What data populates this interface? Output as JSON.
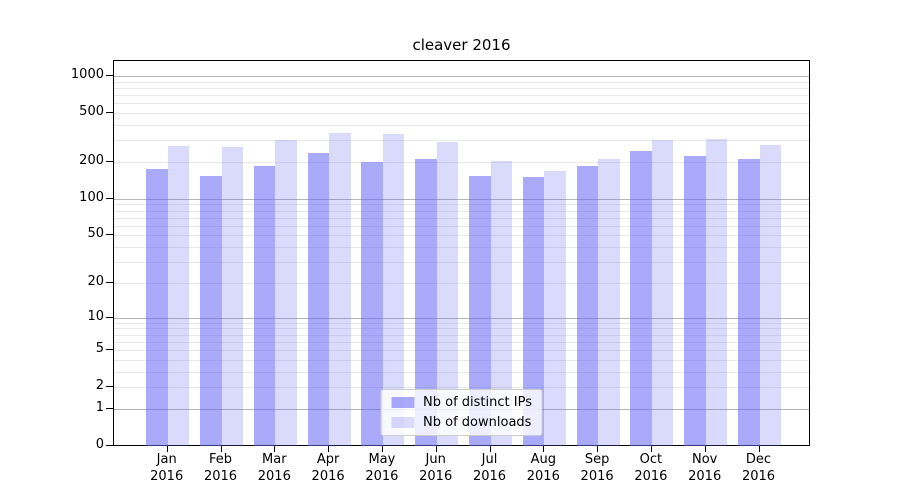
{
  "title": "cleaver 2016",
  "colors": {
    "bar_distinct_ips": "rgba(100,100,245,0.55)",
    "bar_downloads": "rgba(100,100,245,0.24)",
    "bar_distinct_ips_hex": "#aaaafa",
    "bar_downloads_hex": "#dadafa",
    "grid_major": "#b6b6b6",
    "grid_minor": "#e9e9e9",
    "axis": "#000000",
    "legend_border": "#cccccc"
  },
  "legend": {
    "entries": [
      "Nb of distinct IPs",
      "Nb of downloads"
    ]
  },
  "chart_data": {
    "type": "bar",
    "title": "cleaver 2016",
    "categories": [
      "Jan 2016",
      "Feb 2016",
      "Mar 2016",
      "Apr 2016",
      "May 2016",
      "Jun 2016",
      "Jul 2016",
      "Aug 2016",
      "Sep 2016",
      "Oct 2016",
      "Nov 2016",
      "Dec 2016"
    ],
    "series": [
      {
        "name": "Nb of distinct IPs",
        "color": "rgba(100,100,245,0.55)",
        "values": [
          175,
          155,
          185,
          235,
          200,
          210,
          155,
          150,
          185,
          245,
          225,
          210
        ]
      },
      {
        "name": "Nb of downloads",
        "color": "rgba(100,100,245,0.24)",
        "values": [
          270,
          265,
          305,
          345,
          340,
          290,
          205,
          170,
          210,
          300,
          310,
          275
        ]
      }
    ],
    "xlabel": "",
    "ylabel": "",
    "yscale": "log1p",
    "yticks": [
      0,
      1,
      2,
      5,
      10,
      20,
      50,
      100,
      200,
      500,
      1000
    ],
    "ylim": [
      0,
      1340
    ],
    "grid": true,
    "legend_position": "lower center"
  }
}
